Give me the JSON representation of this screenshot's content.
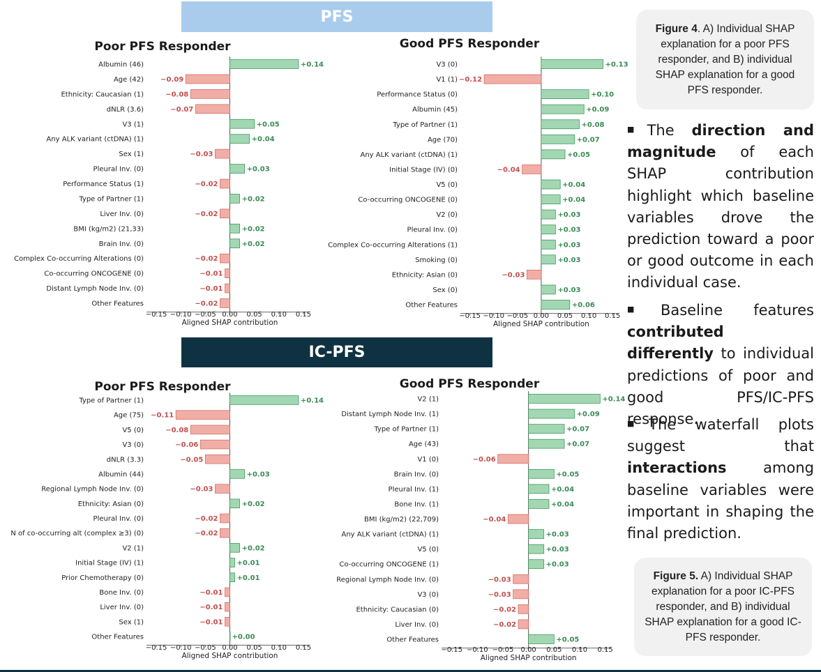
{
  "banners": {
    "pfs": "PFS",
    "icpfs": "IC-PFS"
  },
  "colors": {
    "positive_bar": "#a3d7b3",
    "positive_edge": "#3e9a5c",
    "positive_text": "#3a8a55",
    "negative_bar": "#f0aea6",
    "negative_edge": "#d86f66",
    "negative_text": "#c0504d",
    "banner_pfs": "#a9ccec",
    "banner_icpfs": "#0f3242"
  },
  "captions": {
    "fig4": {
      "label": "Figure 4",
      "text": ". A) Individual SHAP explanation for a poor PFS responder, and B) individual SHAP explanation for a good PFS responder."
    },
    "fig5": {
      "label": "Figure 5.",
      "text": " A) Individual SHAP explanation for a poor IC-PFS responder, and B) individual SHAP explanation for a good IC-PFS responder."
    }
  },
  "bullets": {
    "b1": {
      "t1": "The ",
      "b1": "direction and magnitude",
      "t2": " of each SHAP contribution highlight which baseline variables drove the prediction toward a poor or good outcome in each individual case."
    },
    "b2": {
      "t1": "Baseline features ",
      "b1": "contributed differently",
      "t2": " to individual predictions of poor and good PFS/IC-PFS response."
    },
    "b3": {
      "t1": "The waterfall plots suggest that ",
      "b1": "interactions",
      "t2": " among baseline variables were important in shaping the final prediction."
    }
  },
  "chart_data": [
    {
      "type": "bar",
      "orientation": "horizontal",
      "title": "Poor PFS Responder",
      "section": "PFS",
      "xlabel": "Aligned SHAP contribution",
      "xlim": [
        -0.17,
        0.16
      ],
      "xticks": [
        -0.15,
        -0.1,
        -0.05,
        0.0,
        0.05,
        0.1,
        0.15
      ],
      "xtick_labels": [
        "−0.15",
        "−0.10",
        "−0.05",
        "0.00",
        "0.05",
        "0.10",
        "0.15"
      ],
      "categories": [
        "Albumin (46)",
        "Age (42)",
        "Ethnicity: Caucasian (1)",
        "dNLR (3.6)",
        "V3 (1)",
        "Any ALK variant (ctDNA) (1)",
        "Sex (1)",
        "Pleural Inv. (0)",
        "Performance Status (1)",
        "Type of Partner (1)",
        "Liver Inv. (0)",
        "BMI (kg/m2) (21,33)",
        "Brain Inv. (0)",
        "Complex Co-occurring Alterations (0)",
        "Co-occurring ONCOGENE (0)",
        "Distant Lymph Node Inv. (0)",
        "Other Features"
      ],
      "values": [
        0.14,
        -0.09,
        -0.08,
        -0.07,
        0.05,
        0.04,
        -0.03,
        0.03,
        -0.02,
        0.02,
        -0.02,
        0.02,
        0.02,
        -0.02,
        -0.01,
        -0.01,
        -0.02
      ],
      "value_labels": [
        "+0.14",
        "−0.09",
        "−0.08",
        "−0.07",
        "+0.05",
        "+0.04",
        "−0.03",
        "+0.03",
        "−0.02",
        "+0.02",
        "−0.02",
        "+0.02",
        "+0.02",
        "−0.02",
        "−0.01",
        "−0.01",
        "−0.02"
      ]
    },
    {
      "type": "bar",
      "orientation": "horizontal",
      "title": "Good PFS Responder",
      "section": "PFS",
      "xlabel": "Aligned SHAP contribution",
      "xlim": [
        -0.17,
        0.16
      ],
      "xticks": [
        -0.15,
        -0.1,
        -0.05,
        0.0,
        0.05,
        0.1,
        0.15
      ],
      "xtick_labels": [
        "−0.15",
        "−0.10",
        "−0.05",
        "0.00",
        "0.05",
        "0.10",
        "0.15"
      ],
      "categories": [
        "V3 (0)",
        "V1 (1)",
        "Performance Status (0)",
        "Albumin (45)",
        "Type of Partner (1)",
        "Age (70)",
        "Any ALK variant (ctDNA) (1)",
        "Initial Stage (IV) (0)",
        "V5 (0)",
        "Co-occurring ONCOGENE (0)",
        "V2 (0)",
        "Pleural Inv. (0)",
        "Complex Co-occurring Alterations (1)",
        "Smoking (0)",
        "Ethnicity: Asian (0)",
        "Sex (0)",
        "Other Features"
      ],
      "values": [
        0.13,
        -0.12,
        0.1,
        0.09,
        0.08,
        0.07,
        0.05,
        -0.04,
        0.04,
        0.04,
        0.03,
        0.03,
        0.03,
        0.03,
        -0.03,
        0.03,
        0.06
      ],
      "value_labels": [
        "+0.13",
        "−0.12",
        "+0.10",
        "+0.09",
        "+0.08",
        "+0.07",
        "+0.05",
        "−0.04",
        "+0.04",
        "+0.04",
        "+0.03",
        "+0.03",
        "+0.03",
        "+0.03",
        "−0.03",
        "+0.03",
        "+0.06"
      ]
    },
    {
      "type": "bar",
      "orientation": "horizontal",
      "title": "Poor PFS Responder",
      "section": "IC-PFS",
      "xlabel": "Aligned SHAP contribution",
      "xlim": [
        -0.17,
        0.16
      ],
      "xticks": [
        -0.15,
        -0.1,
        -0.05,
        0.0,
        0.05,
        0.1,
        0.15
      ],
      "xtick_labels": [
        "−0.15",
        "−0.10",
        "−0.05",
        "0.00",
        "0.05",
        "0.10",
        "0.15"
      ],
      "categories": [
        "Type of Partner (1)",
        "Age (75)",
        "V5 (0)",
        "V3 (0)",
        "dNLR (3.3)",
        "Albumin (44)",
        "Regional Lymph Node Inv. (0)",
        "Ethnicity: Asian (0)",
        "Pleural Inv. (0)",
        "N of co-occurring alt (complex ≥3) (0)",
        "V2 (1)",
        "Initial Stage (IV) (1)",
        "Prior Chemotherapy (0)",
        "Bone Inv. (0)",
        "Liver Inv. (0)",
        "Sex (1)",
        "Other Features"
      ],
      "values": [
        0.14,
        -0.11,
        -0.08,
        -0.06,
        -0.05,
        0.03,
        -0.03,
        0.02,
        -0.02,
        -0.02,
        0.02,
        0.01,
        0.01,
        -0.01,
        -0.01,
        -0.01,
        0.0
      ],
      "value_labels": [
        "+0.14",
        "−0.11",
        "−0.08",
        "−0.06",
        "−0.05",
        "+0.03",
        "−0.03",
        "+0.02",
        "−0.02",
        "−0.02",
        "+0.02",
        "+0.01",
        "+0.01",
        "−0.01",
        "−0.01",
        "−0.01",
        "+0.00"
      ]
    },
    {
      "type": "bar",
      "orientation": "horizontal",
      "title": "Good PFS Responder",
      "section": "IC-PFS",
      "xlabel": "Aligned SHAP contribution",
      "xlim": [
        -0.17,
        0.16
      ],
      "xticks": [
        -0.15,
        -0.1,
        -0.05,
        0.0,
        0.05,
        0.1,
        0.15
      ],
      "xtick_labels": [
        "−0.15",
        "−0.10",
        "−0.05",
        "0.00",
        "0.05",
        "0.10",
        "0.15"
      ],
      "categories": [
        "V2 (1)",
        "Distant Lymph Node Inv. (1)",
        "Type of Partner (1)",
        "Age (43)",
        "V1 (0)",
        "Brain Inv. (0)",
        "Pleural Inv. (1)",
        "Bone Inv. (1)",
        "BMI (kg/m2) (22,709)",
        "Any ALK variant (ctDNA) (1)",
        "V5 (0)",
        "Co-occurring ONCOGENE (1)",
        "Regional Lymph Node Inv. (0)",
        "V3 (0)",
        "Ethnicity: Caucasian (0)",
        "Liver Inv. (0)",
        "Other Features"
      ],
      "values": [
        0.14,
        0.09,
        0.07,
        0.07,
        -0.06,
        0.05,
        0.04,
        0.04,
        -0.04,
        0.03,
        0.03,
        0.03,
        -0.03,
        -0.03,
        -0.02,
        -0.02,
        0.05
      ],
      "value_labels": [
        "+0.14",
        "+0.09",
        "+0.07",
        "+0.07",
        "−0.06",
        "+0.05",
        "+0.04",
        "+0.04",
        "−0.04",
        "+0.03",
        "+0.03",
        "+0.03",
        "−0.03",
        "−0.03",
        "−0.02",
        "−0.02",
        "+0.05"
      ]
    }
  ]
}
